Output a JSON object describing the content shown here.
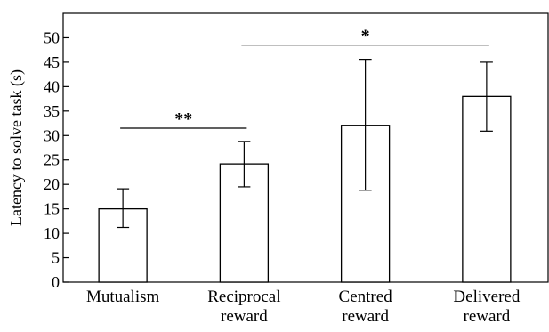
{
  "chart_data": {
    "type": "bar",
    "title": "",
    "xlabel": "",
    "ylabel": "Latency to solve task (s)",
    "ylim": [
      0,
      55
    ],
    "yticks": [
      0,
      5,
      10,
      15,
      20,
      25,
      30,
      35,
      40,
      45,
      50
    ],
    "categories": [
      [
        "Mutualism"
      ],
      [
        "Reciprocal",
        "reward"
      ],
      [
        "Centred",
        "reward"
      ],
      [
        "Delivered",
        "reward"
      ]
    ],
    "values": [
      15,
      24.2,
      32.1,
      38
    ],
    "error_low": [
      11.2,
      19.5,
      18.8,
      30.9
    ],
    "error_high": [
      19.1,
      28.8,
      45.6,
      45
    ],
    "bar_color": "#ffffff",
    "edge_color": "#000000",
    "grid": false,
    "significance": [
      {
        "label": "**",
        "from": 0,
        "to": 1,
        "y": 31.5
      },
      {
        "label": "*",
        "from": 1,
        "to": 3,
        "y": 48.5
      }
    ]
  }
}
